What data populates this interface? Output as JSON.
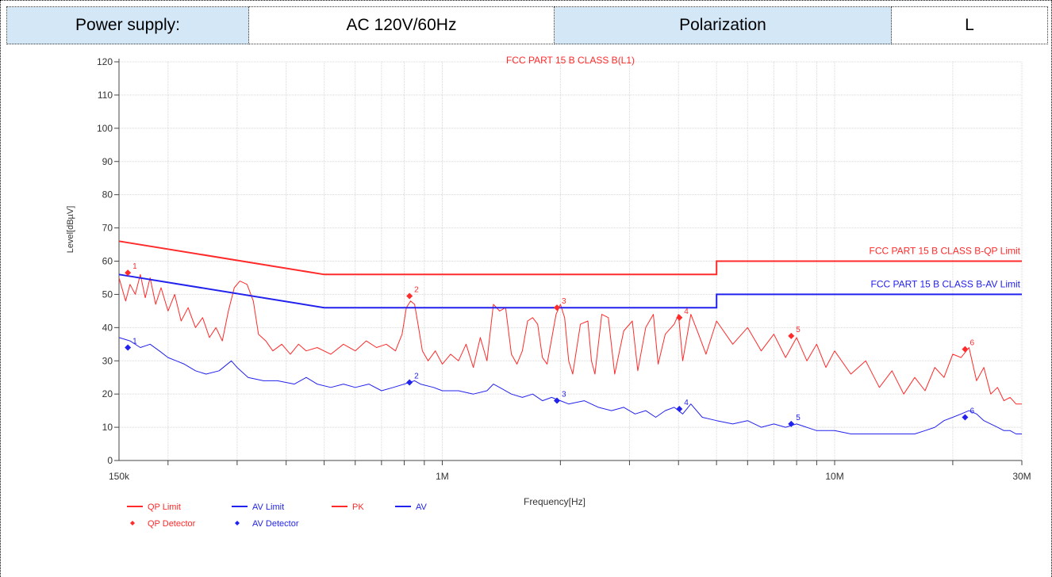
{
  "info": {
    "power_supply_label": "Power supply:",
    "power_supply_value": "AC 120V/60Hz",
    "polarization_label": "Polarization",
    "polarization_value": "L"
  },
  "colors": {
    "red": "#ff2a2a",
    "blue": "#2222ee",
    "grid": "#d8d8d8",
    "header_shade": "#d4e7f7"
  },
  "chart_data": {
    "type": "line",
    "title": "FCC PART 15 B CLASS B(L1)",
    "xlabel": "Frequency[Hz]",
    "ylabel": "Level[dBµV]",
    "x_scale": "log",
    "xlim": [
      150000,
      30000000
    ],
    "ylim": [
      0,
      120
    ],
    "grid": true,
    "x_ticks": [
      {
        "value": 150000,
        "label": "150k"
      },
      {
        "value": 1000000,
        "label": "1M"
      },
      {
        "value": 10000000,
        "label": "10M"
      },
      {
        "value": 30000000,
        "label": "30M"
      }
    ],
    "y_ticks": [
      {
        "value": 0,
        "label": "0"
      },
      {
        "value": 10,
        "label": "10"
      },
      {
        "value": 20,
        "label": "20"
      },
      {
        "value": 30,
        "label": "30"
      },
      {
        "value": 40,
        "label": "40"
      },
      {
        "value": 50,
        "label": "50"
      },
      {
        "value": 60,
        "label": "60"
      },
      {
        "value": 70,
        "label": "70"
      },
      {
        "value": 80,
        "label": "80"
      },
      {
        "value": 90,
        "label": "90"
      },
      {
        "value": 100,
        "label": "100"
      },
      {
        "value": 110,
        "label": "110"
      },
      {
        "value": 120,
        "label": "120"
      }
    ],
    "limit_lines": [
      {
        "name": "FCC PART 15 B CLASS B-QP Limit",
        "color": "#ff2a2a",
        "points": [
          [
            150000,
            66
          ],
          [
            500000,
            56
          ],
          [
            5000000,
            56
          ],
          [
            5000000,
            60
          ],
          [
            30000000,
            60
          ]
        ]
      },
      {
        "name": "FCC PART 15 B CLASS B-AV Limit",
        "color": "#2222ee",
        "points": [
          [
            150000,
            56
          ],
          [
            500000,
            46
          ],
          [
            5000000,
            46
          ],
          [
            5000000,
            50
          ],
          [
            30000000,
            50
          ]
        ]
      }
    ],
    "series": [
      {
        "name": "PK",
        "color": "#ff2a2a",
        "points": [
          [
            150000,
            55
          ],
          [
            156000,
            48
          ],
          [
            160000,
            53
          ],
          [
            165000,
            50
          ],
          [
            170000,
            56
          ],
          [
            175000,
            49
          ],
          [
            180000,
            55
          ],
          [
            186000,
            47
          ],
          [
            192000,
            52
          ],
          [
            200000,
            45
          ],
          [
            208000,
            50
          ],
          [
            216000,
            42
          ],
          [
            225000,
            46
          ],
          [
            235000,
            40
          ],
          [
            245000,
            43
          ],
          [
            255000,
            37
          ],
          [
            265000,
            40
          ],
          [
            275000,
            36
          ],
          [
            285000,
            45
          ],
          [
            295000,
            52
          ],
          [
            305000,
            54
          ],
          [
            318000,
            53
          ],
          [
            330000,
            48
          ],
          [
            340000,
            38
          ],
          [
            355000,
            36
          ],
          [
            370000,
            33
          ],
          [
            390000,
            35
          ],
          [
            410000,
            32
          ],
          [
            430000,
            35
          ],
          [
            450000,
            33
          ],
          [
            480000,
            34
          ],
          [
            520000,
            32
          ],
          [
            560000,
            35
          ],
          [
            600000,
            33
          ],
          [
            640000,
            36
          ],
          [
            680000,
            34
          ],
          [
            720000,
            35
          ],
          [
            760000,
            33
          ],
          [
            790000,
            38
          ],
          [
            810000,
            46
          ],
          [
            830000,
            48
          ],
          [
            850000,
            47
          ],
          [
            870000,
            40
          ],
          [
            890000,
            33
          ],
          [
            920000,
            30
          ],
          [
            960000,
            33
          ],
          [
            1000000,
            29
          ],
          [
            1050000,
            32
          ],
          [
            1100000,
            30
          ],
          [
            1150000,
            35
          ],
          [
            1200000,
            28
          ],
          [
            1250000,
            37
          ],
          [
            1300000,
            30
          ],
          [
            1350000,
            47
          ],
          [
            1400000,
            45
          ],
          [
            1450000,
            46
          ],
          [
            1500000,
            32
          ],
          [
            1550000,
            29
          ],
          [
            1600000,
            33
          ],
          [
            1650000,
            42
          ],
          [
            1700000,
            43
          ],
          [
            1750000,
            41
          ],
          [
            1800000,
            31
          ],
          [
            1850000,
            29
          ],
          [
            1950000,
            44
          ],
          [
            2000000,
            47
          ],
          [
            2050000,
            43
          ],
          [
            2100000,
            30
          ],
          [
            2150000,
            26
          ],
          [
            2250000,
            41
          ],
          [
            2350000,
            42
          ],
          [
            2400000,
            30
          ],
          [
            2450000,
            26
          ],
          [
            2550000,
            44
          ],
          [
            2650000,
            43
          ],
          [
            2750000,
            26
          ],
          [
            2900000,
            39
          ],
          [
            3050000,
            42
          ],
          [
            3150000,
            27
          ],
          [
            3300000,
            40
          ],
          [
            3450000,
            44
          ],
          [
            3550000,
            29
          ],
          [
            3700000,
            38
          ],
          [
            3900000,
            41
          ],
          [
            4000000,
            44
          ],
          [
            4100000,
            30
          ],
          [
            4300000,
            44
          ],
          [
            4500000,
            38
          ],
          [
            4700000,
            32
          ],
          [
            5000000,
            42
          ],
          [
            5500000,
            35
          ],
          [
            6000000,
            40
          ],
          [
            6500000,
            33
          ],
          [
            7000000,
            38
          ],
          [
            7500000,
            31
          ],
          [
            8000000,
            37
          ],
          [
            8500000,
            30
          ],
          [
            9000000,
            35
          ],
          [
            9500000,
            28
          ],
          [
            10000000,
            33
          ],
          [
            11000000,
            26
          ],
          [
            12000000,
            30
          ],
          [
            13000000,
            22
          ],
          [
            14000000,
            27
          ],
          [
            15000000,
            20
          ],
          [
            16000000,
            25
          ],
          [
            17000000,
            21
          ],
          [
            18000000,
            28
          ],
          [
            19000000,
            25
          ],
          [
            20000000,
            32
          ],
          [
            21000000,
            31
          ],
          [
            22000000,
            34
          ],
          [
            23000000,
            24
          ],
          [
            24000000,
            28
          ],
          [
            25000000,
            20
          ],
          [
            26000000,
            22
          ],
          [
            27000000,
            18
          ],
          [
            28000000,
            19
          ],
          [
            29000000,
            17
          ],
          [
            30000000,
            17
          ]
        ]
      },
      {
        "name": "AV",
        "color": "#2222ee",
        "points": [
          [
            150000,
            37
          ],
          [
            160000,
            36
          ],
          [
            170000,
            34
          ],
          [
            180000,
            35
          ],
          [
            190000,
            33
          ],
          [
            200000,
            31
          ],
          [
            210000,
            30
          ],
          [
            220000,
            29
          ],
          [
            235000,
            27
          ],
          [
            250000,
            26
          ],
          [
            270000,
            27
          ],
          [
            290000,
            30
          ],
          [
            300000,
            28
          ],
          [
            320000,
            25
          ],
          [
            350000,
            24
          ],
          [
            380000,
            24
          ],
          [
            420000,
            23
          ],
          [
            450000,
            25
          ],
          [
            480000,
            23
          ],
          [
            520000,
            22
          ],
          [
            560000,
            23
          ],
          [
            600000,
            22
          ],
          [
            650000,
            23
          ],
          [
            700000,
            21
          ],
          [
            750000,
            22
          ],
          [
            800000,
            23
          ],
          [
            850000,
            24
          ],
          [
            880000,
            23
          ],
          [
            950000,
            22
          ],
          [
            1000000,
            21
          ],
          [
            1100000,
            21
          ],
          [
            1200000,
            20
          ],
          [
            1300000,
            21
          ],
          [
            1350000,
            23
          ],
          [
            1400000,
            22
          ],
          [
            1500000,
            20
          ],
          [
            1600000,
            19
          ],
          [
            1700000,
            20
          ],
          [
            1800000,
            18
          ],
          [
            1900000,
            19
          ],
          [
            2000000,
            18
          ],
          [
            2100000,
            17
          ],
          [
            2300000,
            18
          ],
          [
            2500000,
            16
          ],
          [
            2700000,
            15
          ],
          [
            2900000,
            16
          ],
          [
            3100000,
            14
          ],
          [
            3300000,
            15
          ],
          [
            3500000,
            13
          ],
          [
            3700000,
            15
          ],
          [
            3900000,
            16
          ],
          [
            4100000,
            14
          ],
          [
            4300000,
            17
          ],
          [
            4600000,
            13
          ],
          [
            5000000,
            12
          ],
          [
            5500000,
            11
          ],
          [
            6000000,
            12
          ],
          [
            6500000,
            10
          ],
          [
            7000000,
            11
          ],
          [
            7500000,
            10
          ],
          [
            8000000,
            11
          ],
          [
            9000000,
            9
          ],
          [
            10000000,
            9
          ],
          [
            11000000,
            8
          ],
          [
            12000000,
            8
          ],
          [
            13000000,
            8
          ],
          [
            14000000,
            8
          ],
          [
            15000000,
            8
          ],
          [
            16000000,
            8
          ],
          [
            17000000,
            9
          ],
          [
            18000000,
            10
          ],
          [
            19000000,
            12
          ],
          [
            20000000,
            13
          ],
          [
            21000000,
            14
          ],
          [
            22000000,
            15
          ],
          [
            23000000,
            14
          ],
          [
            24000000,
            12
          ],
          [
            25000000,
            11
          ],
          [
            26000000,
            10
          ],
          [
            27000000,
            9
          ],
          [
            28000000,
            9
          ],
          [
            29000000,
            8
          ],
          [
            30000000,
            8
          ]
        ]
      }
    ],
    "qp_detector": [
      {
        "x": 158000,
        "y": 56.5,
        "label": "1"
      },
      {
        "x": 825000,
        "y": 49.5,
        "label": "2"
      },
      {
        "x": 1960000,
        "y": 46.0,
        "label": "3"
      },
      {
        "x": 4020000,
        "y": 43.0,
        "label": "4"
      },
      {
        "x": 7750000,
        "y": 37.5,
        "label": "5"
      },
      {
        "x": 21500000,
        "y": 33.5,
        "label": "6"
      }
    ],
    "av_detector": [
      {
        "x": 158000,
        "y": 34.0,
        "label": "1"
      },
      {
        "x": 825000,
        "y": 23.5,
        "label": "2"
      },
      {
        "x": 1960000,
        "y": 18.0,
        "label": "3"
      },
      {
        "x": 4020000,
        "y": 15.5,
        "label": "4"
      },
      {
        "x": 7750000,
        "y": 11.0,
        "label": "5"
      },
      {
        "x": 21500000,
        "y": 13.0,
        "label": "6"
      }
    ],
    "legend": [
      {
        "label": "QP Limit",
        "kind": "line",
        "color": "#ff2a2a"
      },
      {
        "label": "AV Limit",
        "kind": "line",
        "color": "#2222ee"
      },
      {
        "label": "PK",
        "kind": "line",
        "color": "#ff2a2a"
      },
      {
        "label": "AV",
        "kind": "line",
        "color": "#2222ee"
      },
      {
        "label": "QP Detector",
        "kind": "marker",
        "color": "#ff2a2a"
      },
      {
        "label": "AV Detector",
        "kind": "marker",
        "color": "#2222ee"
      }
    ],
    "legend_position": "bottom-left"
  }
}
